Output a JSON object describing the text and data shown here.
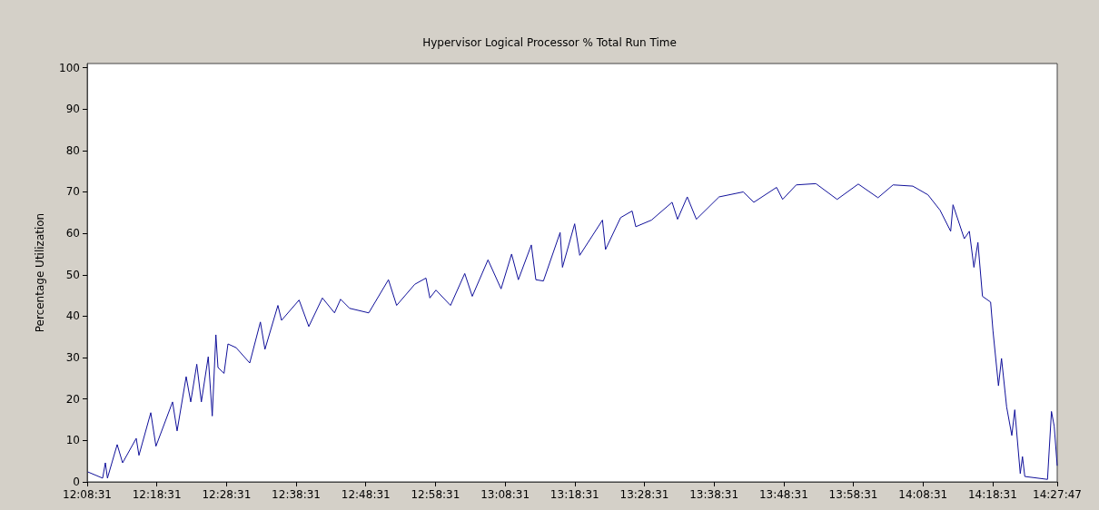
{
  "chart_data": {
    "type": "line",
    "title": "Hypervisor Logical Processor % Total Run Time",
    "ylabel": "Percentage Utilization",
    "xlim": [
      12.141944,
      14.463056
    ],
    "xticks": [
      {
        "value": 12.141944,
        "label": "12:08:31"
      },
      {
        "value": 12.308611,
        "label": "12:18:31"
      },
      {
        "value": 12.475278,
        "label": "12:28:31"
      },
      {
        "value": 12.641944,
        "label": "12:38:31"
      },
      {
        "value": 12.808611,
        "label": "12:48:31"
      },
      {
        "value": 12.975278,
        "label": "12:58:31"
      },
      {
        "value": 13.141944,
        "label": "13:08:31"
      },
      {
        "value": 13.308611,
        "label": "13:18:31"
      },
      {
        "value": 13.475278,
        "label": "13:28:31"
      },
      {
        "value": 13.641944,
        "label": "13:38:31"
      },
      {
        "value": 13.808611,
        "label": "13:48:31"
      },
      {
        "value": 13.975278,
        "label": "13:58:31"
      },
      {
        "value": 14.141944,
        "label": "14:08:31"
      },
      {
        "value": 14.308611,
        "label": "14:18:31"
      },
      {
        "value": 14.463056,
        "label": "14:27:47"
      }
    ],
    "ylim": [
      0,
      101
    ],
    "yticks": [
      0,
      10,
      20,
      30,
      40,
      50,
      60,
      70,
      80,
      90,
      100
    ],
    "grid": false,
    "marker": "none",
    "line_style": "solid",
    "series": [
      {
        "color": "#10109a",
        "x": [
          12.1435,
          12.1789,
          12.1854,
          12.1904,
          12.2137,
          12.2267,
          12.2593,
          12.2658,
          12.2941,
          12.3065,
          12.3462,
          12.3571,
          12.3788,
          12.3897,
          12.4042,
          12.4151,
          12.4316,
          12.4412,
          12.4499,
          12.4549,
          12.4694,
          12.4788,
          12.4983,
          12.5309,
          12.5564,
          12.5673,
          12.5983,
          12.607,
          12.649,
          12.6722,
          12.7048,
          12.7337,
          12.7483,
          12.77,
          12.8157,
          12.8628,
          12.8824,
          12.9258,
          12.9526,
          12.9619,
          12.9765,
          13.0113,
          13.0454,
          13.0634,
          13.101,
          13.1323,
          13.1575,
          13.1736,
          13.2047,
          13.2155,
          13.2336,
          13.2736,
          13.2792,
          13.3084,
          13.3205,
          13.3749,
          13.3822,
          13.4183,
          13.4459,
          13.4546,
          13.4922,
          13.5415,
          13.5546,
          13.5778,
          13.5996,
          13.6539,
          13.7117,
          13.7371,
          13.7915,
          13.806,
          13.8386,
          13.8856,
          13.9364,
          13.987,
          14.0342,
          14.0703,
          14.1175,
          14.1538,
          14.1826,
          14.2081,
          14.2137,
          14.2407,
          14.2528,
          14.2637,
          14.2733,
          14.2842,
          14.3037,
          14.3094,
          14.3225,
          14.3298,
          14.342,
          14.3544,
          14.3615,
          14.3746,
          14.3799,
          14.3855,
          14.4398,
          14.4493,
          14.4559,
          14.463
        ],
        "values": [
          2.4,
          0.9,
          4.6,
          0.9,
          9,
          4.6,
          10.5,
          6.4,
          16.7,
          8.6,
          19.3,
          12.3,
          25.4,
          19.3,
          28.4,
          19.3,
          30.2,
          15.9,
          35.5,
          27.6,
          26.2,
          33.3,
          32.4,
          28.7,
          38.6,
          32,
          42.6,
          39,
          43.9,
          37.5,
          44.4,
          40.8,
          44.1,
          41.9,
          40.8,
          48.8,
          42.6,
          47.7,
          49.2,
          44.4,
          46.3,
          42.6,
          50.3,
          44.8,
          53.6,
          46.6,
          55,
          48.8,
          57.2,
          48.8,
          48.5,
          60.2,
          51.8,
          62.3,
          54.7,
          63.2,
          56.1,
          63.8,
          65.4,
          61.6,
          63.2,
          67.5,
          63.4,
          68.8,
          63.4,
          68.8,
          70,
          67.5,
          71.1,
          68.2,
          71.7,
          72,
          68.2,
          71.9,
          68.6,
          71.7,
          71.4,
          69.3,
          65.6,
          60.5,
          66.9,
          58.7,
          60.5,
          51.8,
          57.8,
          44.8,
          43.4,
          36.4,
          23.2,
          29.8,
          18.1,
          11.2,
          17.4,
          2,
          6.1,
          1.3,
          0.6,
          17,
          13.4,
          3.9
        ]
      }
    ]
  }
}
